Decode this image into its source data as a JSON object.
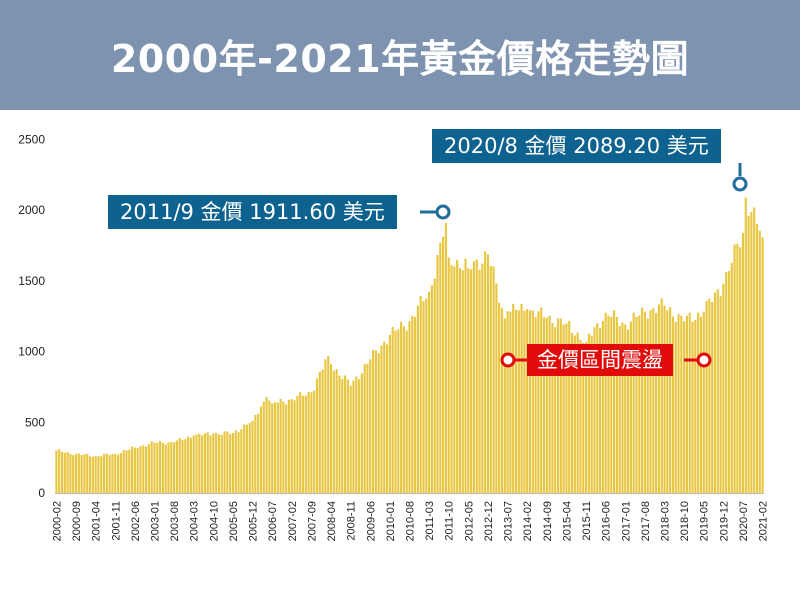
{
  "header": {
    "title": "2000年-2021年黃金價格走勢圖"
  },
  "colors": {
    "header_bg": "#7d93b0",
    "bar": "#e8c640",
    "callout_blue": "#0e628f",
    "callout_red": "#e10b0b",
    "marker_blue": "#1f6e99"
  },
  "annotations": {
    "peak_2011": "2011/9 金價 1911.60 美元",
    "peak_2020": "2020/8 金價 2089.20 美元",
    "range": "金價區間震盪"
  },
  "chart_data": {
    "type": "bar",
    "title": "2000年-2021年黃金價格走勢圖",
    "xlabel": "",
    "ylabel": "",
    "ylim": [
      0,
      2500
    ],
    "yticks": [
      0,
      500,
      1000,
      1500,
      2000,
      2500
    ],
    "start_month": "2000-02",
    "end_month": "2021-02",
    "x_tick_labels": [
      "2000-02",
      "2000-09",
      "2001-04",
      "2001-11",
      "2002-06",
      "2003-01",
      "2003-08",
      "2004-03",
      "2004-10",
      "2005-05",
      "2005-12",
      "2006-07",
      "2007-02",
      "2007-09",
      "2008-04",
      "2008-11",
      "2009-06",
      "2010-01",
      "2010-08",
      "2011-03",
      "2011-10",
      "2012-05",
      "2012-12",
      "2013-07",
      "2014-02",
      "2014-09",
      "2015-04",
      "2015-11",
      "2016-06",
      "2017-01",
      "2017-08",
      "2018-03",
      "2018-10",
      "2019-05",
      "2019-12",
      "2020-07",
      "2021-02"
    ],
    "anchor_values": [
      [
        "2000-02",
        300
      ],
      [
        "2000-09",
        275
      ],
      [
        "2001-04",
        262
      ],
      [
        "2001-11",
        276
      ],
      [
        "2002-06",
        322
      ],
      [
        "2003-01",
        356
      ],
      [
        "2003-08",
        359
      ],
      [
        "2004-03",
        406
      ],
      [
        "2004-10",
        420
      ],
      [
        "2005-05",
        424
      ],
      [
        "2005-12",
        510
      ],
      [
        "2006-05",
        680
      ],
      [
        "2006-07",
        633
      ],
      [
        "2007-02",
        664
      ],
      [
        "2007-09",
        712
      ],
      [
        "2008-03",
        968
      ],
      [
        "2008-04",
        910
      ],
      [
        "2008-11",
        760
      ],
      [
        "2009-06",
        945
      ],
      [
        "2010-01",
        1118
      ],
      [
        "2010-08",
        1215
      ],
      [
        "2011-03",
        1424
      ],
      [
        "2011-08",
        1813
      ],
      [
        "2011-09",
        1911.6
      ],
      [
        "2011-10",
        1665
      ],
      [
        "2012-05",
        1590
      ],
      [
        "2012-12",
        1688
      ],
      [
        "2013-06",
        1234
      ],
      [
        "2013-07",
        1286
      ],
      [
        "2014-02",
        1300
      ],
      [
        "2014-09",
        1240
      ],
      [
        "2015-04",
        1198
      ],
      [
        "2015-11",
        1068
      ],
      [
        "2016-06",
        1275
      ],
      [
        "2017-01",
        1192
      ],
      [
        "2017-08",
        1282
      ],
      [
        "2018-03",
        1324
      ],
      [
        "2018-10",
        1215
      ],
      [
        "2019-05",
        1283
      ],
      [
        "2019-12",
        1480
      ],
      [
        "2020-07",
        1840
      ],
      [
        "2020-08",
        2089.2
      ],
      [
        "2021-02",
        1808
      ]
    ]
  }
}
